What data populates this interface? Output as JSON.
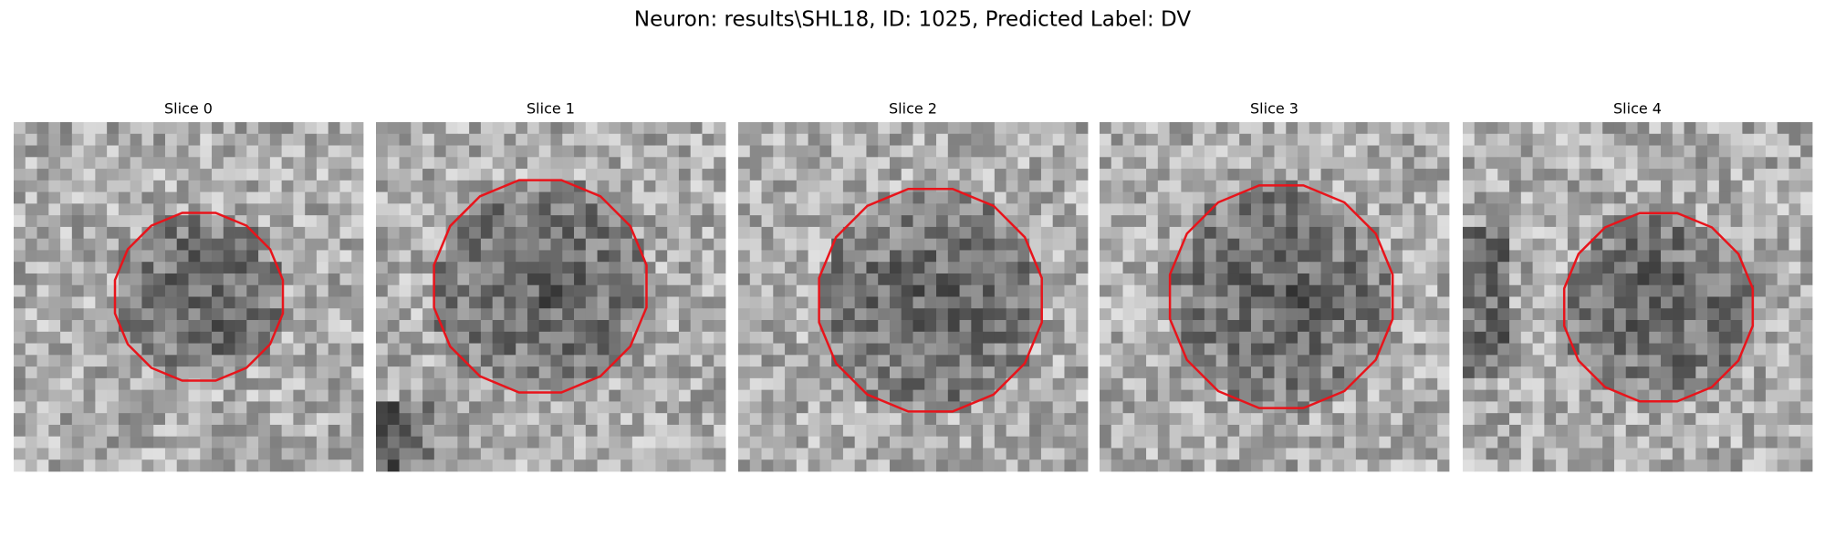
{
  "figure": {
    "title": "Neuron: results\\SHL18, ID: 1025, Predicted Label: DV",
    "panels": [
      {
        "title": "Slice 0"
      },
      {
        "title": "Slice 1"
      },
      {
        "title": "Slice 2"
      },
      {
        "title": "Slice 3"
      },
      {
        "title": "Slice 4"
      }
    ]
  }
}
